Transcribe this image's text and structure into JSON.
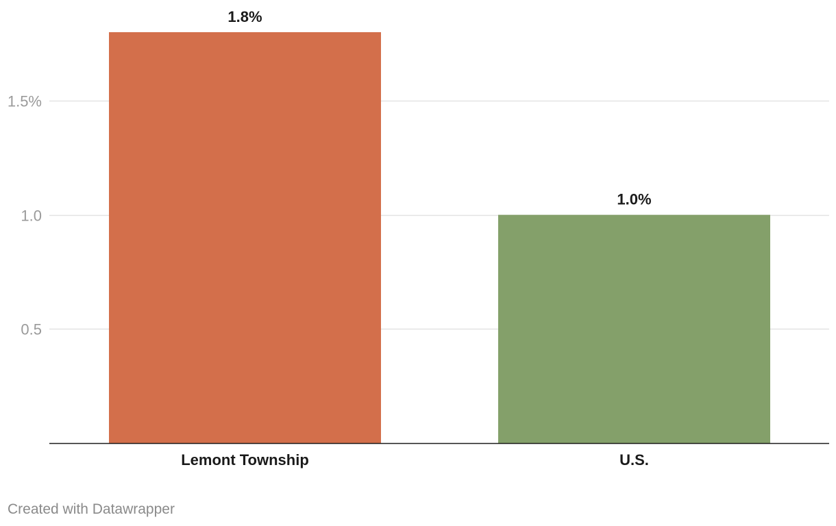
{
  "chart_data": {
    "type": "bar",
    "categories": [
      "Lemont Township",
      "U.S."
    ],
    "values": [
      1.8,
      1.0
    ],
    "value_labels": [
      "1.8%",
      "1.0%"
    ],
    "colors": [
      "#d36f4b",
      "#84a06a"
    ],
    "yticks": [
      {
        "value": 0.5,
        "label": "0.5"
      },
      {
        "value": 1.0,
        "label": "1.0"
      },
      {
        "value": 1.5,
        "label": "1.5%"
      }
    ],
    "ylim": [
      0,
      1.8
    ],
    "grid": true,
    "title": "",
    "xlabel": "",
    "ylabel": ""
  },
  "footer": {
    "credit": "Created with Datawrapper"
  }
}
